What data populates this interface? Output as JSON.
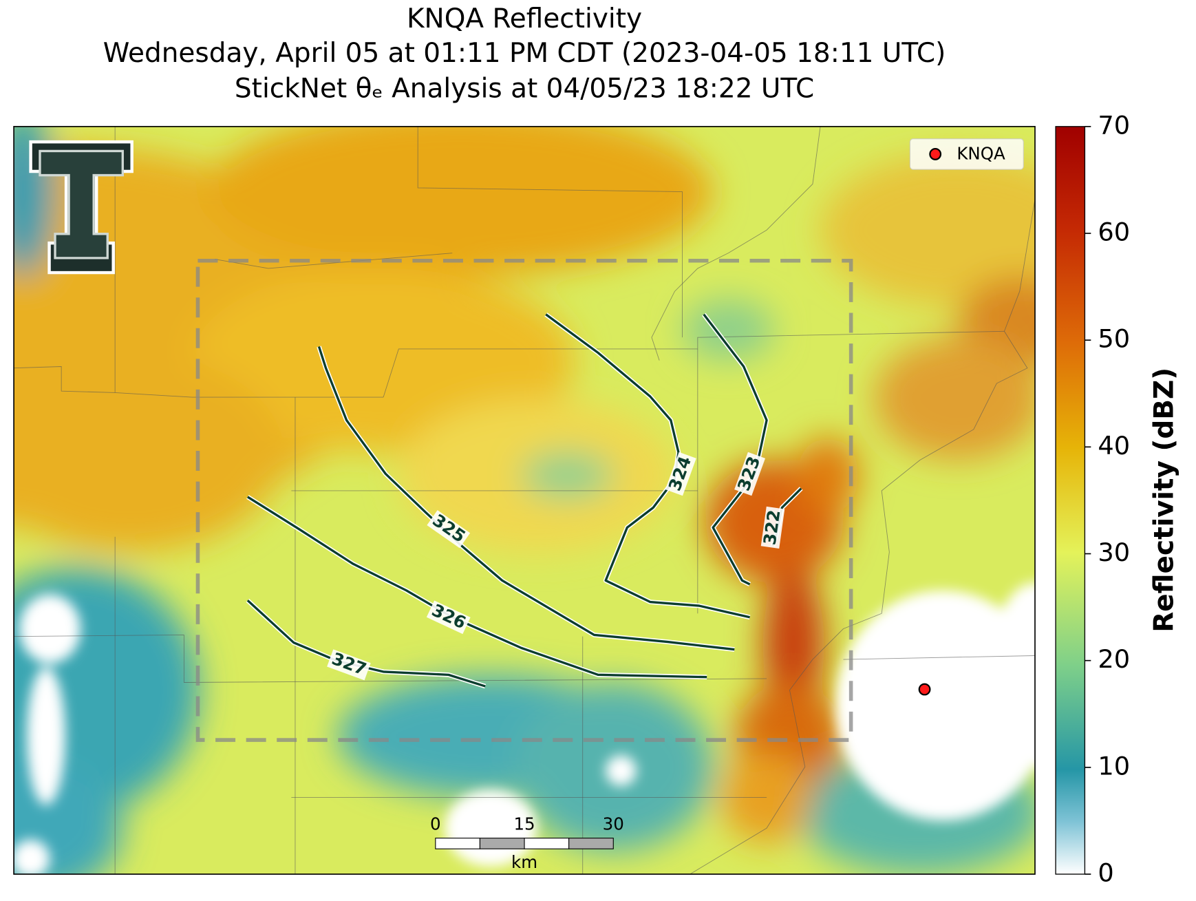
{
  "header": {
    "title_lines": [
      "KNQA Reflectivity",
      "Wednesday, April 05 at 01:11 PM CDT (2023-04-05 18:11 UTC)",
      "StickNet θₑ Analysis at 04/05/23 18:22 UTC"
    ]
  },
  "map": {
    "legend": {
      "label": "KNQA",
      "marker_color": "#ff1a1a"
    },
    "contour_color": "#0b3d2e",
    "contours": [
      {
        "level": 322
      },
      {
        "level": 323
      },
      {
        "level": 324
      },
      {
        "level": 325
      },
      {
        "level": 326
      },
      {
        "level": 327
      }
    ],
    "scale_bar": {
      "ticks": [
        0,
        15,
        30
      ],
      "unit": "km"
    }
  },
  "colorbar": {
    "label": "Reflectivity (dBZ)",
    "lim": [
      0,
      70
    ],
    "ticks": [
      0,
      10,
      20,
      30,
      40,
      50,
      60,
      70
    ]
  }
}
